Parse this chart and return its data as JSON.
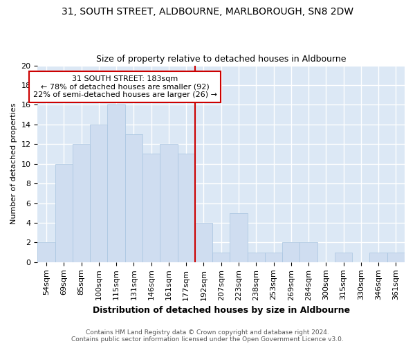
{
  "title": "31, SOUTH STREET, ALDBOURNE, MARLBOROUGH, SN8 2DW",
  "subtitle": "Size of property relative to detached houses in Aldbourne",
  "xlabel": "Distribution of detached houses by size in Aldbourne",
  "ylabel": "Number of detached properties",
  "categories": [
    "54sqm",
    "69sqm",
    "85sqm",
    "100sqm",
    "115sqm",
    "131sqm",
    "146sqm",
    "161sqm",
    "177sqm",
    "192sqm",
    "207sqm",
    "223sqm",
    "238sqm",
    "253sqm",
    "269sqm",
    "284sqm",
    "300sqm",
    "315sqm",
    "330sqm",
    "346sqm",
    "361sqm"
  ],
  "values": [
    2,
    10,
    12,
    14,
    16,
    13,
    11,
    12,
    11,
    4,
    1,
    5,
    1,
    1,
    2,
    2,
    0,
    1,
    0,
    1,
    1
  ],
  "bar_color": "#cfddf0",
  "bar_edgecolor": "#a8c4e0",
  "property_label": "31 SOUTH STREET: 183sqm",
  "annotation_line1": "← 78% of detached houses are smaller (92)",
  "annotation_line2": "22% of semi-detached houses are larger (26) →",
  "vline_color": "#cc0000",
  "ylim": [
    0,
    20
  ],
  "yticks": [
    0,
    2,
    4,
    6,
    8,
    10,
    12,
    14,
    16,
    18,
    20
  ],
  "background_color": "#dce8f5",
  "grid_color": "#ffffff",
  "footer_line1": "Contains HM Land Registry data © Crown copyright and database right 2024.",
  "footer_line2": "Contains public sector information licensed under the Open Government Licence v3.0.",
  "title_fontsize": 10,
  "subtitle_fontsize": 9,
  "xlabel_fontsize": 9,
  "ylabel_fontsize": 8,
  "tick_fontsize": 8,
  "footer_fontsize": 6.5,
  "annot_fontsize": 8
}
